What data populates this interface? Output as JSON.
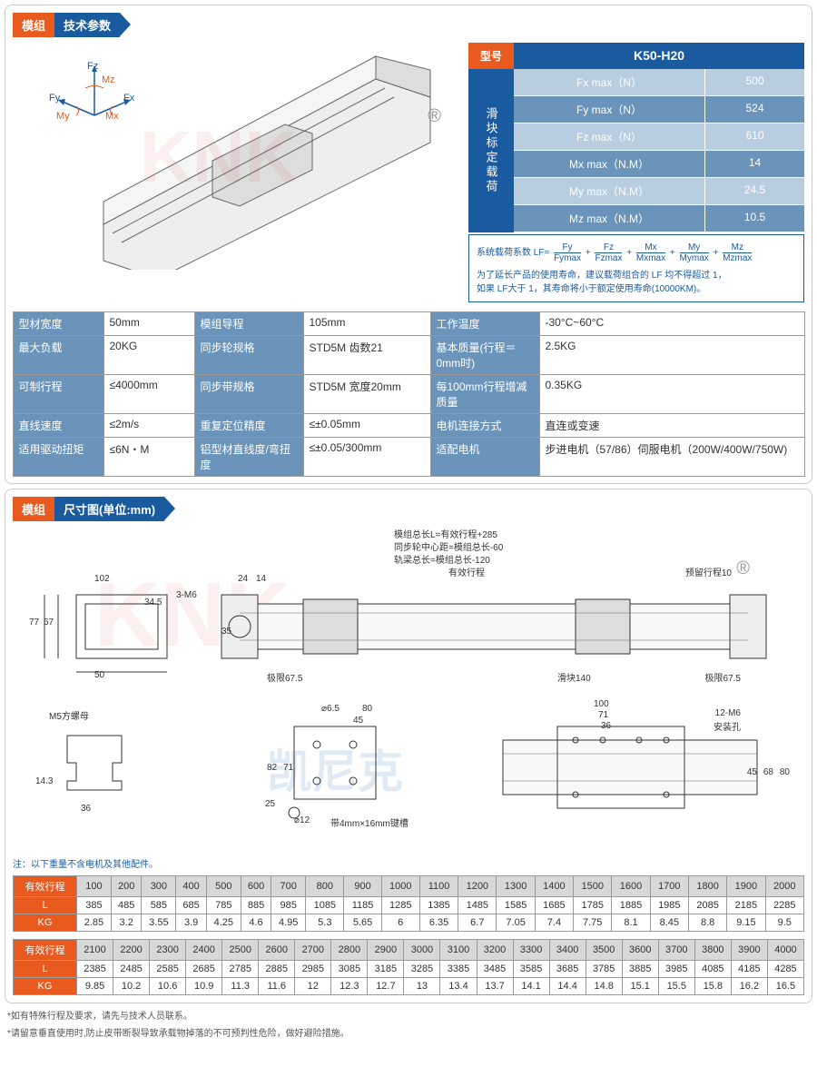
{
  "section1": {
    "tag1": "模组",
    "tag2": "技术参数",
    "forces": {
      "fz": "Fz",
      "fy": "Fy",
      "fx": "Fx",
      "mz": "Mz",
      "my": "My",
      "mx": "Mx"
    },
    "model_label": "型号",
    "model_value": "K50-H20",
    "load_label": "滑块标定载荷",
    "load_rows": [
      {
        "param": "Fx max（N）",
        "value": "500",
        "style": "light"
      },
      {
        "param": "Fy max（N）",
        "value": "524",
        "style": "dark"
      },
      {
        "param": "Fz max（N）",
        "value": "610",
        "style": "light"
      },
      {
        "param": "Mx max（N.M）",
        "value": "14",
        "style": "dark"
      },
      {
        "param": "My max（N.M）",
        "value": "24.5",
        "style": "light"
      },
      {
        "param": "Mz max（N.M）",
        "value": "10.5",
        "style": "dark"
      }
    ],
    "formula_prefix": "系统载荷系数 LF=",
    "formula_terms": [
      {
        "top": "Fy",
        "bot": "Fymax"
      },
      {
        "top": "Fz",
        "bot": "Fzmax"
      },
      {
        "top": "Mx",
        "bot": "Mxmax"
      },
      {
        "top": "My",
        "bot": "Mymax"
      },
      {
        "top": "Mz",
        "bot": "Mzmax"
      }
    ],
    "formula_note1": "为了延长产品的使用寿命，建议载荷组合的 LF 均不得超过 1，",
    "formula_note2": "如果 LF大于 1，其寿命将小于额定使用寿命(10000KM)。",
    "params": [
      [
        "型材宽度",
        "50mm",
        "模组导程",
        "105mm",
        "工作温度",
        "-30°C~60°C"
      ],
      [
        "最大负载",
        "20KG",
        "同步轮规格",
        "STD5M 齿数21",
        "基本质量(行程＝0mm时)",
        "2.5KG"
      ],
      [
        "可制行程",
        "≤4000mm",
        "同步带规格",
        "STD5M 宽度20mm",
        "每100mm行程增减质量",
        "0.35KG"
      ],
      [
        "直线速度",
        "≤2m/s",
        "重复定位精度",
        "≤±0.05mm",
        "电机连接方式",
        "直连或变速"
      ],
      [
        "适用驱动扭矩",
        "≤6N・M",
        "铝型材直线度/弯扭度",
        "≤±0.05/300mm",
        "适配电机",
        "步进电机（57/86）伺服电机（200W/400W/750W)"
      ]
    ]
  },
  "section2": {
    "tag1": "模组",
    "tag2": "尺寸图(单位:mm)",
    "dim_labels": {
      "d1": "模组总长L=有效行程+285",
      "d2": "同步轮中心距=模组总长-60",
      "d3": "轨梁总长=模组总长-120",
      "d4": "有效行程",
      "d5": "预留行程10",
      "w102": "102",
      "h77": "77",
      "h67": "67",
      "w50": "50",
      "h345": "34.5",
      "m6": "3-M6",
      "w24": "24",
      "w14": "14",
      "h35": "35",
      "lim": "极限67.5",
      "slider": "滑块140",
      "lim2": "极限67.5",
      "m5": "M5方螺母",
      "h143": "14.3",
      "w36": "36",
      "d65": "⌀6.5",
      "w80": "80",
      "w45": "45",
      "h82": "82",
      "h71": "71",
      "h25": "25",
      "d12": "⌀12",
      "key": "带4mm×16mm键槽",
      "w100": "100",
      "w71b": "71",
      "w36b": "36",
      "m12": "12-M6",
      "mount": "安装孔",
      "h45": "45",
      "h68": "68",
      "h80": "80"
    },
    "note_pre": "注：以下重量不含电机及其他配件。",
    "table1": {
      "header": "有效行程",
      "strokes": [
        "100",
        "200",
        "300",
        "400",
        "500",
        "600",
        "700",
        "800",
        "900",
        "1000",
        "1100",
        "1200",
        "1300",
        "1400",
        "1500",
        "1600",
        "1700",
        "1800",
        "1900",
        "2000"
      ],
      "L": [
        "385",
        "485",
        "585",
        "685",
        "785",
        "885",
        "985",
        "1085",
        "1185",
        "1285",
        "1385",
        "1485",
        "1585",
        "1685",
        "1785",
        "1885",
        "1985",
        "2085",
        "2185",
        "2285"
      ],
      "KG": [
        "2.85",
        "3.2",
        "3.55",
        "3.9",
        "4.25",
        "4.6",
        "4.95",
        "5.3",
        "5.65",
        "6",
        "6.35",
        "6.7",
        "7.05",
        "7.4",
        "7.75",
        "8.1",
        "8.45",
        "8.8",
        "9.15",
        "9.5"
      ]
    },
    "table2": {
      "header": "有效行程",
      "strokes": [
        "2100",
        "2200",
        "2300",
        "2400",
        "2500",
        "2600",
        "2700",
        "2800",
        "2900",
        "3000",
        "3100",
        "3200",
        "3300",
        "3400",
        "3500",
        "3600",
        "3700",
        "3800",
        "3900",
        "4000"
      ],
      "L": [
        "2385",
        "2485",
        "2585",
        "2685",
        "2785",
        "2885",
        "2985",
        "3085",
        "3185",
        "3285",
        "3385",
        "3485",
        "3585",
        "3685",
        "3785",
        "3885",
        "3985",
        "4085",
        "4185",
        "4285"
      ],
      "KG": [
        "9.85",
        "10.2",
        "10.6",
        "10.9",
        "11.3",
        "11.6",
        "12",
        "12.3",
        "12.7",
        "13",
        "13.4",
        "13.7",
        "14.1",
        "14.4",
        "14.8",
        "15.1",
        "15.5",
        "15.8",
        "16.2",
        "16.5"
      ]
    },
    "row_L": "L",
    "row_KG": "KG"
  },
  "footer": {
    "n1": "*如有特殊行程及要求，请先与技术人员联系。",
    "n2": "*请留意垂直使用时,防止皮带断裂导致承载物掉落的不可预判性危险，做好避险措施。"
  },
  "colors": {
    "orange": "#e85a1e",
    "blue": "#1a5a9e",
    "lightblue": "#b8cde0",
    "medblue": "#6b94bb"
  }
}
